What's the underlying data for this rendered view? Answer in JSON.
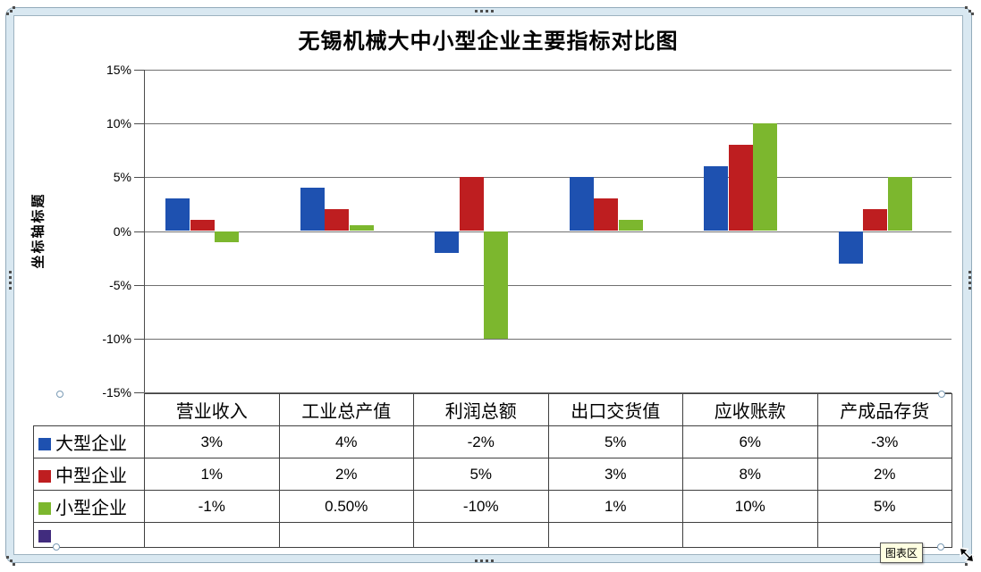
{
  "selection": {
    "hover_tooltip": "图表区"
  },
  "chart_data": {
    "type": "bar",
    "title": "无锡机械大中小型企业主要指标对比图",
    "y_axis_title": "坐标轴标题",
    "xlabel": "",
    "ylabel": "坐标轴标题",
    "categories": [
      "营业收入",
      "工业总产值",
      "利润总额",
      "出口交货值",
      "应收账款",
      "产成品存货"
    ],
    "series": [
      {
        "name": "大型企业",
        "color": "#1e51b0",
        "values": [
          3,
          4,
          -2,
          5,
          6,
          -3
        ],
        "display": [
          "3%",
          "4%",
          "-2%",
          "5%",
          "6%",
          "-3%"
        ]
      },
      {
        "name": "中型企业",
        "color": "#be1e20",
        "values": [
          1,
          2,
          5,
          3,
          8,
          2
        ],
        "display": [
          "1%",
          "2%",
          "5%",
          "3%",
          "8%",
          "2%"
        ]
      },
      {
        "name": "小型企业",
        "color": "#7cb72e",
        "values": [
          -1,
          0.5,
          -10,
          1,
          10,
          5
        ],
        "display": [
          "-1%",
          "0.50%",
          "-10%",
          "1%",
          "10%",
          "5%"
        ]
      },
      {
        "name": "",
        "color": "#412c7e",
        "values": [],
        "display": [
          "",
          "",
          "",
          "",
          "",
          ""
        ]
      }
    ],
    "ylim": [
      -15,
      15
    ],
    "ytick_step": 5,
    "y_ticks": [
      "15%",
      "10%",
      "5%",
      "0%",
      "-5%",
      "-10%",
      "-15%"
    ],
    "grid": true,
    "legend_position": "data-table-left"
  }
}
